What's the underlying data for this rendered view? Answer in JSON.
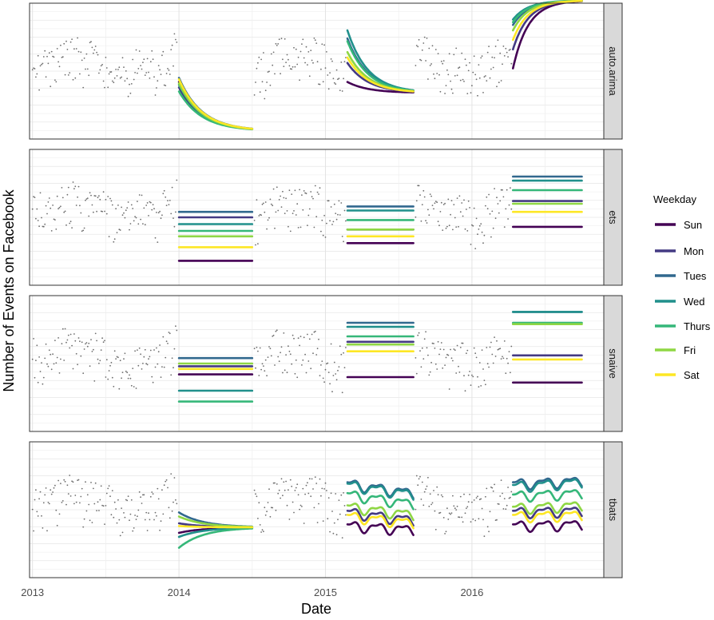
{
  "chart_data": {
    "type": "line",
    "title": "",
    "xlabel": "Date",
    "ylabel": "Number of Events on Facebook",
    "x_ticks": [
      "2013",
      "2014",
      "2015",
      "2016"
    ],
    "x_range": [
      2012.98,
      2016.9
    ],
    "y_range": [
      0,
      100
    ],
    "legend": {
      "title": "Weekday",
      "placement": "right",
      "entries": [
        {
          "name": "Sun",
          "color": "#440154"
        },
        {
          "name": "Mon",
          "color": "#443A83"
        },
        {
          "name": "Tues",
          "color": "#31688E"
        },
        {
          "name": "Wed",
          "color": "#21908C"
        },
        {
          "name": "Thurs",
          "color": "#35B779"
        },
        {
          "name": "Fri",
          "color": "#8FD744"
        },
        {
          "name": "Sat",
          "color": "#FDE725"
        }
      ]
    },
    "observed_style": {
      "color": "#555555"
    },
    "panels": [
      {
        "facet": "auto.arima",
        "forecasts": [
          {
            "start": 2014.0,
            "end": 2014.5,
            "shape": "decay",
            "start_values": [
              42,
              38,
              45,
              40,
              35,
              41,
              44
            ],
            "end_values": [
              6,
              6,
              6,
              6,
              6,
              6,
              6
            ]
          },
          {
            "start": 2015.15,
            "end": 2015.6,
            "shape": "decay",
            "start_values": [
              42,
              56,
              74,
              80,
              72,
              64,
              60
            ],
            "end_values": [
              34,
              34,
              34,
              34,
              34,
              34,
              34
            ]
          },
          {
            "start": 2016.28,
            "end": 2016.75,
            "shape": "grow",
            "start_values": [
              52,
              66,
              84,
              88,
              86,
              80,
              73
            ],
            "end_values": [
              102,
              102,
              102,
              102,
              102,
              102,
              102
            ]
          }
        ]
      },
      {
        "facet": "ets",
        "forecasts": [
          {
            "start": 2014.0,
            "end": 2014.5,
            "shape": "flat",
            "start_values": [
              18,
              50,
              54,
              45,
              40,
              36,
              28
            ]
          },
          {
            "start": 2015.15,
            "end": 2015.6,
            "shape": "flat",
            "start_values": [
              31,
              41,
              58,
              55,
              48,
              41,
              36
            ]
          },
          {
            "start": 2016.28,
            "end": 2016.75,
            "shape": "flat",
            "start_values": [
              43,
              62,
              80,
              77,
              70,
              60,
              54
            ]
          }
        ]
      },
      {
        "facet": "snaive",
        "forecasts": [
          {
            "start": 2014.0,
            "end": 2014.5,
            "shape": "flat",
            "start_values": [
              42,
              48,
              54,
              30,
              22,
              50,
              46
            ]
          },
          {
            "start": 2015.15,
            "end": 2015.6,
            "shape": "flat",
            "start_values": [
              40,
              66,
              80,
              77,
              70,
              64,
              59
            ]
          },
          {
            "start": 2016.28,
            "end": 2016.75,
            "shape": "flat",
            "start_values": [
              36,
              56,
              88,
              88,
              80,
              79,
              53
            ]
          }
        ]
      },
      {
        "facet": "tbats",
        "forecasts": [
          {
            "start": 2014.0,
            "end": 2014.5,
            "shape": "converge",
            "start_values": [
              33,
              40,
              48,
              30,
              22,
              45,
              38
            ],
            "end_values": [
              37,
              37,
              37,
              37,
              37,
              37,
              37
            ]
          },
          {
            "start": 2015.15,
            "end": 2015.6,
            "shape": "wavy",
            "start_values": [
              38,
              48,
              69,
              68,
              61,
              52,
              45
            ],
            "end_values": [
              35,
              42,
              62,
              61,
              54,
              46,
              40
            ]
          },
          {
            "start": 2016.28,
            "end": 2016.75,
            "shape": "wavy",
            "start_values": [
              38,
              48,
              69,
              67,
              60,
              51,
              45
            ],
            "end_values": [
              39,
              49,
              71,
              70,
              62,
              53,
              46
            ]
          }
        ]
      }
    ]
  }
}
